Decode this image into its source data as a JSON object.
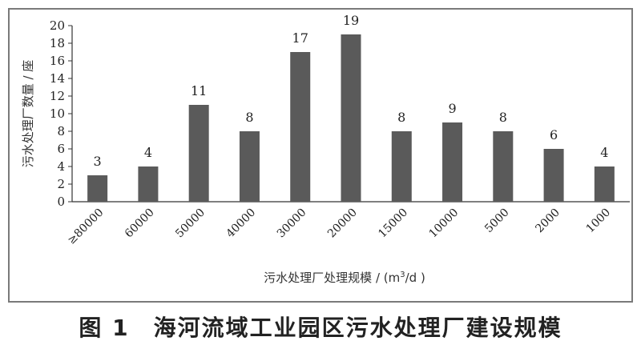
{
  "caption": {
    "number": "图 1",
    "title": "海河流域工业园区污水处理厂建设规模"
  },
  "chart_data": {
    "type": "bar",
    "categories": [
      "≥80000",
      "60000",
      "50000",
      "40000",
      "30000",
      "20000",
      "15000",
      "10000",
      "5000",
      "2000",
      "1000"
    ],
    "values": [
      3,
      4,
      11,
      8,
      17,
      19,
      8,
      9,
      8,
      6,
      4
    ],
    "data_labels": [
      "3",
      "4",
      "11",
      "8",
      "17",
      "19",
      "8",
      "9",
      "8",
      "6",
      "4"
    ],
    "y_ticks": [
      "0",
      "2",
      "4",
      "6",
      "8",
      "10",
      "12",
      "14",
      "16",
      "18",
      "20"
    ],
    "ylim": [
      0,
      20
    ],
    "ylabel": "污水处理厂数量 / 座",
    "xlabel_main": "污水处理厂处理规模 / (m",
    "xlabel_sup": "3",
    "xlabel_tail": "/d )",
    "grid": false,
    "bar_color": "#5a5a5a"
  }
}
